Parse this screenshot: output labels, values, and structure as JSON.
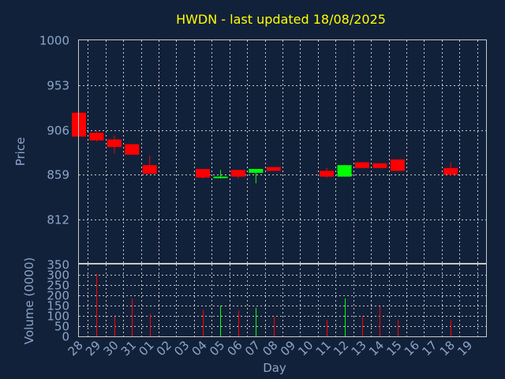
{
  "chart_data": {
    "type": "candlestick",
    "title": "HWDN - last updated 18/08/2025",
    "xlabel": "Day",
    "x_ticks": [
      "28",
      "29",
      "30",
      "31",
      "01",
      "02",
      "03",
      "04",
      "05",
      "06",
      "07",
      "08",
      "09",
      "10",
      "11",
      "12",
      "13",
      "14",
      "15",
      "16",
      "17",
      "18",
      "19"
    ],
    "price": {
      "ylabel": "Price",
      "ylim": [
        812,
        1000
      ],
      "y_ticks": [
        "1000",
        "953",
        "906",
        "859",
        "812"
      ],
      "candles": [
        {
          "day": "28",
          "open": 924,
          "close": 899,
          "high": 924,
          "low": 899,
          "color": "#ff0000"
        },
        {
          "day": "29",
          "open": 903,
          "close": 895,
          "high": 905,
          "low": 894,
          "color": "#ff0000"
        },
        {
          "day": "30",
          "open": 896,
          "close": 888,
          "high": 900,
          "low": 881,
          "color": "#ff0000"
        },
        {
          "day": "31",
          "open": 891,
          "close": 880,
          "high": 891,
          "low": 880,
          "color": "#ff0000"
        },
        {
          "day": "01",
          "open": 869,
          "close": 860,
          "high": 879,
          "low": 860,
          "color": "#ff0000"
        },
        {
          "day": "04",
          "open": 865,
          "close": 856,
          "high": 865,
          "low": 855,
          "color": "#ff0000"
        },
        {
          "day": "05",
          "open": 856,
          "close": 857,
          "high": 864,
          "low": 855,
          "color": "#00ff00"
        },
        {
          "day": "06",
          "open": 864,
          "close": 857,
          "high": 864,
          "low": 855,
          "color": "#ff0000"
        },
        {
          "day": "07",
          "open": 861,
          "close": 865,
          "high": 865,
          "low": 850,
          "color": "#00ff00"
        },
        {
          "day": "08",
          "open": 867,
          "close": 863,
          "high": 867,
          "low": 863,
          "color": "#ff0000"
        },
        {
          "day": "11",
          "open": 863,
          "close": 857,
          "high": 866,
          "low": 856,
          "color": "#ff0000"
        },
        {
          "day": "12",
          "open": 857,
          "close": 869,
          "high": 869,
          "low": 857,
          "color": "#00ff00"
        },
        {
          "day": "13",
          "open": 872,
          "close": 866,
          "high": 872,
          "low": 866,
          "color": "#ff0000"
        },
        {
          "day": "14",
          "open": 871,
          "close": 866,
          "high": 871,
          "low": 866,
          "color": "#ff0000"
        },
        {
          "day": "15",
          "open": 875,
          "close": 863,
          "high": 875,
          "low": 863,
          "color": "#ff0000"
        },
        {
          "day": "18",
          "open": 866,
          "close": 859,
          "high": 872,
          "low": 858,
          "color": "#ff0000"
        }
      ]
    },
    "volume": {
      "ylabel": "Volume (0000)",
      "ylim": [
        0,
        350
      ],
      "y_ticks": [
        "350",
        "300",
        "250",
        "200",
        "150",
        "100",
        "50",
        "0"
      ],
      "bars": [
        {
          "day": "29",
          "value": 305,
          "color": "#ff0000"
        },
        {
          "day": "30",
          "value": 95,
          "color": "#ff0000"
        },
        {
          "day": "31",
          "value": 185,
          "color": "#ff0000"
        },
        {
          "day": "01",
          "value": 110,
          "color": "#ff0000"
        },
        {
          "day": "04",
          "value": 130,
          "color": "#ff0000"
        },
        {
          "day": "05",
          "value": 150,
          "color": "#00ff00"
        },
        {
          "day": "06",
          "value": 125,
          "color": "#ff0000"
        },
        {
          "day": "07",
          "value": 140,
          "color": "#00ff00"
        },
        {
          "day": "08",
          "value": 95,
          "color": "#ff0000"
        },
        {
          "day": "11",
          "value": 80,
          "color": "#ff0000"
        },
        {
          "day": "12",
          "value": 185,
          "color": "#00ff00"
        },
        {
          "day": "13",
          "value": 100,
          "color": "#ff0000"
        },
        {
          "day": "14",
          "value": 145,
          "color": "#ff0000"
        },
        {
          "day": "15",
          "value": 80,
          "color": "#ff0000"
        },
        {
          "day": "18",
          "value": 80,
          "color": "#ff0000"
        }
      ]
    },
    "grid": true,
    "colors": {
      "background": "#12213a",
      "title": "#ffff00",
      "text": "#8ba6c8",
      "up": "#00ff00",
      "down": "#ff0000",
      "grid": "#c8c8c8"
    }
  }
}
